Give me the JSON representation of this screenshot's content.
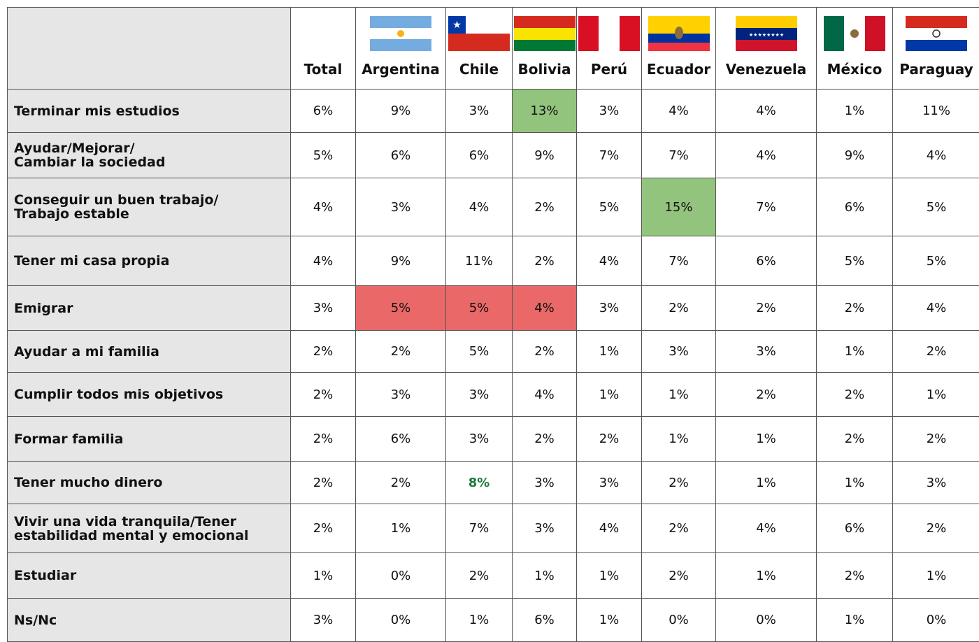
{
  "header": {
    "columns": [
      "Total",
      "Argentina",
      "Chile",
      "Bolivia",
      "Perú",
      "Ecuador",
      "Venezuela",
      "México",
      "Paraguay"
    ]
  },
  "rows": [
    {
      "label": "Terminar mis estudios",
      "values": [
        "6%",
        "9%",
        "3%",
        "13%",
        "3%",
        "4%",
        "4%",
        "1%",
        "11%"
      ]
    },
    {
      "label": "Ayudar/Mejorar/\nCambiar la sociedad",
      "values": [
        "5%",
        "6%",
        "6%",
        "9%",
        "7%",
        "7%",
        "4%",
        "9%",
        "4%"
      ]
    },
    {
      "label": "Conseguir un buen trabajo/\nTrabajo estable",
      "values": [
        "4%",
        "3%",
        "4%",
        "2%",
        "5%",
        "15%",
        "7%",
        "6%",
        "5%"
      ]
    },
    {
      "label": "Tener mi casa propia",
      "values": [
        "4%",
        "9%",
        "11%",
        "2%",
        "4%",
        "7%",
        "6%",
        "5%",
        "5%"
      ]
    },
    {
      "label": "Emigrar",
      "values": [
        "3%",
        "5%",
        "5%",
        "4%",
        "3%",
        "2%",
        "2%",
        "2%",
        "4%"
      ]
    },
    {
      "label": "Ayudar a mi familia",
      "values": [
        "2%",
        "2%",
        "5%",
        "2%",
        "1%",
        "3%",
        "3%",
        "1%",
        "2%"
      ]
    },
    {
      "label": "Cumplir todos mis objetivos",
      "values": [
        "2%",
        "3%",
        "3%",
        "4%",
        "1%",
        "1%",
        "2%",
        "2%",
        "1%"
      ]
    },
    {
      "label": "Formar familia",
      "values": [
        "2%",
        "6%",
        "3%",
        "2%",
        "2%",
        "1%",
        "1%",
        "2%",
        "2%"
      ]
    },
    {
      "label": "Tener mucho dinero",
      "values": [
        "2%",
        "2%",
        "8%",
        "3%",
        "3%",
        "2%",
        "1%",
        "1%",
        "3%"
      ]
    },
    {
      "label": "Vivir una vida tranquila/Tener\nestabilidad mental y emocional",
      "values": [
        "2%",
        "1%",
        "7%",
        "3%",
        "4%",
        "2%",
        "4%",
        "6%",
        "2%"
      ]
    },
    {
      "label": "Estudiar",
      "values": [
        "1%",
        "0%",
        "2%",
        "1%",
        "1%",
        "2%",
        "1%",
        "2%",
        "1%"
      ]
    },
    {
      "label": "Ns/Nc",
      "values": [
        "3%",
        "0%",
        "1%",
        "6%",
        "1%",
        "0%",
        "0%",
        "1%",
        "0%"
      ]
    }
  ]
}
